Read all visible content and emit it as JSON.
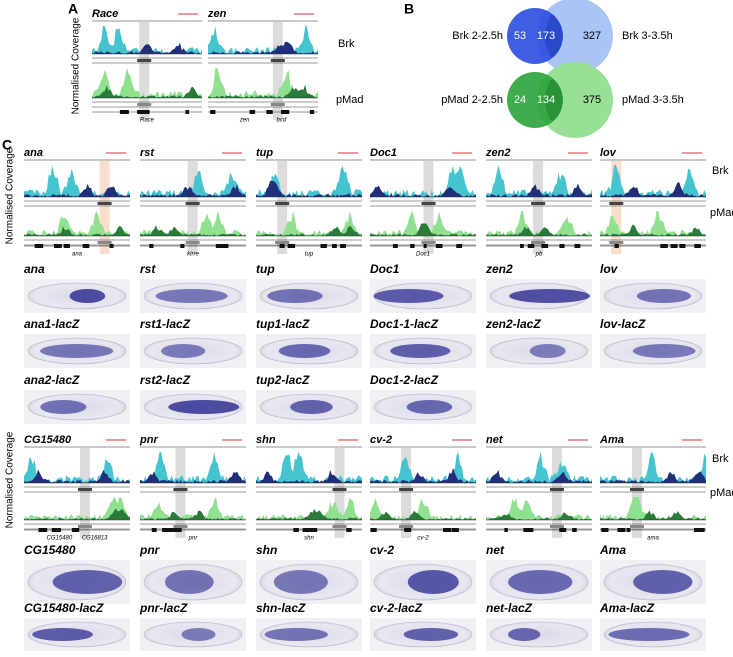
{
  "panels": {
    "A": {
      "label": "A",
      "tracks": [
        "Brk",
        "pMad"
      ],
      "y_axis_label": "Normalised Coverage",
      "loci": [
        {
          "gene": "Race",
          "annotations": [
            "Race"
          ]
        },
        {
          "gene": "zen",
          "annotations": [
            "zen",
            "bcd"
          ]
        }
      ]
    },
    "B": {
      "label": "B",
      "venns": [
        {
          "left_label": "Brk 2-2.5h",
          "left_only": 53,
          "shared": 173,
          "right_only": 327,
          "right_label": "Brk 3-3.5h"
        },
        {
          "left_label": "pMad 2-2.5h",
          "left_only": 24,
          "shared": 134,
          "right_only": 375,
          "right_label": "pMad 3-3.5h"
        }
      ]
    },
    "C": {
      "label": "C",
      "groups": [
        {
          "tracks": [
            "Brk",
            "pMad"
          ],
          "y_axis_label": "Normalised Coverage",
          "loci": [
            {
              "gene": "ana",
              "annotations": [
                "ana"
              ]
            },
            {
              "gene": "rst",
              "annotations": [
                "kirre"
              ]
            },
            {
              "gene": "tup",
              "annotations": [
                "tup"
              ]
            },
            {
              "gene": "Doc1",
              "annotations": [
                "Doc1"
              ]
            },
            {
              "gene": "zen2",
              "annotations": [
                "pb"
              ]
            },
            {
              "gene": "lov",
              "annotations": []
            }
          ],
          "embryo_rows": [
            [
              "ana",
              "rst",
              "tup",
              "Doc1",
              "zen2",
              "lov"
            ],
            [
              "ana1-lacZ",
              "rst1-lacZ",
              "tup1-lacZ",
              "Doc1-1-lacZ",
              "zen2-lacZ",
              "lov-lacZ"
            ],
            [
              "ana2-lacZ",
              "rst2-lacZ",
              "tup2-lacZ",
              "Doc1-2-lacZ"
            ]
          ]
        },
        {
          "tracks": [
            "Brk",
            "pMad"
          ],
          "y_axis_label": "Normalised Coverage",
          "loci": [
            {
              "gene": "CG15480",
              "annotations": [
                "CG15480",
                "CG16813"
              ]
            },
            {
              "gene": "pnr",
              "annotations": [
                "pnr"
              ]
            },
            {
              "gene": "shn",
              "annotations": [
                "shn"
              ]
            },
            {
              "gene": "cv-2",
              "annotations": [
                "cv-2"
              ]
            },
            {
              "gene": "net",
              "annotations": []
            },
            {
              "gene": "Ama",
              "annotations": [
                "ama"
              ]
            }
          ],
          "embryo_rows": [
            [
              "CG15480",
              "pnr",
              "shn",
              "cv-2",
              "net",
              "Ama"
            ],
            [
              "CG15480-lacZ",
              "pnr-lacZ",
              "shn-lacZ",
              "cv-2-lacZ",
              "net-lacZ",
              "Ama-lacZ"
            ]
          ]
        }
      ]
    }
  }
}
